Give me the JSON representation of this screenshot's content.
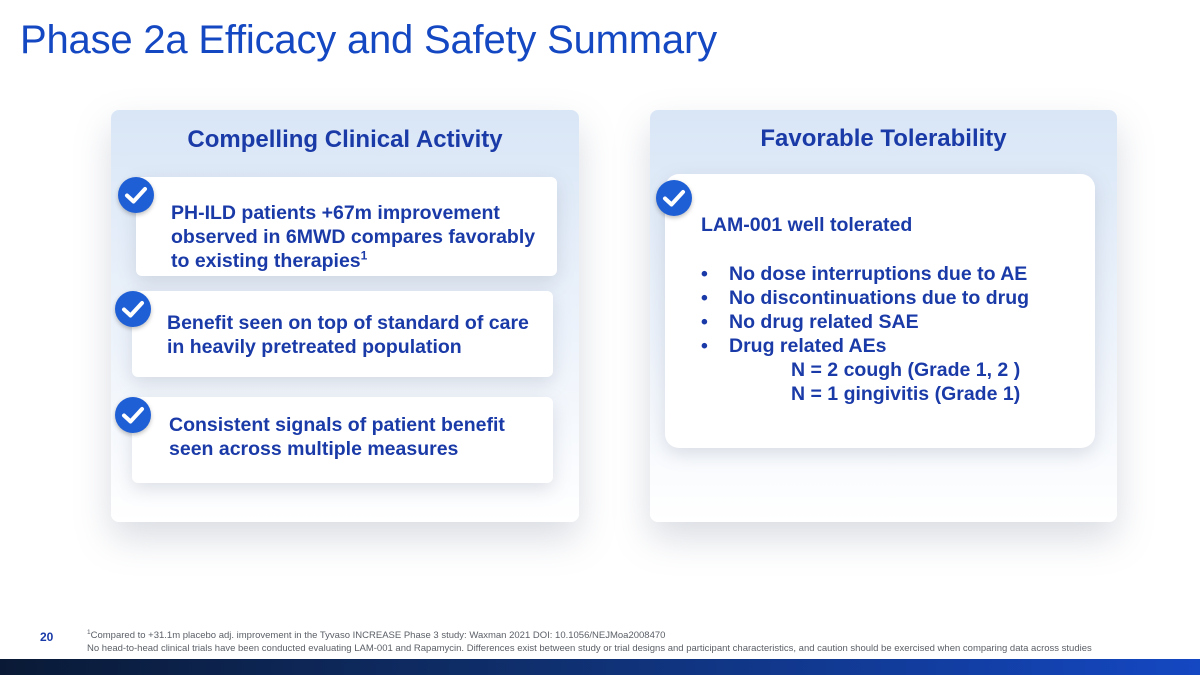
{
  "slide": {
    "title": "Phase 2a Efficacy and Safety Summary",
    "page_number": "20"
  },
  "left_panel": {
    "heading": "Compelling Clinical Activity",
    "cards": [
      {
        "lines": [
          "PH-ILD patients +67m improvement",
          "observed in 6MWD compares favorably"
        ],
        "last_line": "to existing therapies",
        "superscript": "1"
      },
      {
        "lines": [
          "Benefit seen on top of standard of care",
          "in heavily pretreated population"
        ]
      },
      {
        "lines": [
          "Consistent signals of patient benefit",
          "seen across multiple measures"
        ]
      }
    ]
  },
  "right_panel": {
    "heading": "Favorable Tolerability",
    "card_heading": "LAM-001 well tolerated",
    "bullet_symbol": "•",
    "bullets": [
      "No dose interruptions due to AE",
      "No discontinuations due to drug",
      "No drug related SAE",
      "Drug related AEs"
    ],
    "sub_items": [
      "N = 2 cough (Grade 1, 2 )",
      "N = 1 gingivitis (Grade 1)"
    ]
  },
  "footnotes": {
    "marker": "1",
    "line1": "Compared to +31.1m placebo adj. improvement in the Tyvaso INCREASE Phase 3 study: Waxman 2021 DOI: 10.1056/NEJMoa2008470",
    "line2": "No head-to-head clinical trials have been conducted evaluating LAM-001 and Rapamycin.  Differences exist between study or trial designs and participant characteristics, and caution should be exercised when comparing data across studies"
  },
  "colors": {
    "title_blue": "#1447c2",
    "text_navy": "#1a3aa8",
    "check_blue": "#1f5fd6"
  },
  "icons": [
    "check-circle-icon"
  ]
}
